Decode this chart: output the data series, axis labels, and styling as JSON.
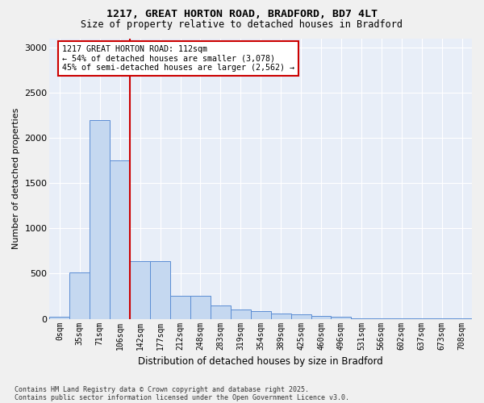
{
  "title_line1": "1217, GREAT HORTON ROAD, BRADFORD, BD7 4LT",
  "title_line2": "Size of property relative to detached houses in Bradford",
  "xlabel": "Distribution of detached houses by size in Bradford",
  "ylabel": "Number of detached properties",
  "categories": [
    "0sqm",
    "35sqm",
    "71sqm",
    "106sqm",
    "142sqm",
    "177sqm",
    "212sqm",
    "248sqm",
    "283sqm",
    "319sqm",
    "354sqm",
    "389sqm",
    "425sqm",
    "460sqm",
    "496sqm",
    "531sqm",
    "566sqm",
    "602sqm",
    "637sqm",
    "673sqm",
    "708sqm"
  ],
  "bar_values": [
    20,
    510,
    2200,
    1750,
    640,
    640,
    255,
    255,
    145,
    100,
    85,
    55,
    50,
    30,
    20,
    10,
    5,
    3,
    2,
    2,
    2
  ],
  "bar_color": "#c5d8f0",
  "bar_edge_color": "#5b8dd4",
  "vline_color": "#cc0000",
  "vline_pos": 3.5,
  "annotation_text": "1217 GREAT HORTON ROAD: 112sqm\n← 54% of detached houses are smaller (3,078)\n45% of semi-detached houses are larger (2,562) →",
  "annotation_box_color": "#ffffff",
  "annotation_box_edge": "#cc0000",
  "ylim": [
    0,
    3100
  ],
  "yticks": [
    0,
    500,
    1000,
    1500,
    2000,
    2500,
    3000
  ],
  "bg_color": "#e8eef8",
  "grid_color": "#ffffff",
  "footer_line1": "Contains HM Land Registry data © Crown copyright and database right 2025.",
  "footer_line2": "Contains public sector information licensed under the Open Government Licence v3.0."
}
